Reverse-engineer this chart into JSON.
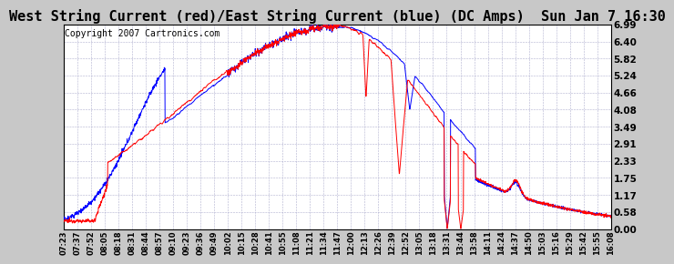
{
  "title": "West String Current (red)/East String Current (blue) (DC Amps)  Sun Jan 7 16:30",
  "copyright": "Copyright 2007 Cartronics.com",
  "bg_color": "#c8c8c8",
  "plot_bg_color": "#ffffff",
  "grid_color": "#b0b0d0",
  "yticks": [
    0.0,
    0.58,
    1.17,
    1.75,
    2.33,
    2.91,
    3.49,
    4.08,
    4.66,
    5.24,
    5.82,
    6.4,
    6.99
  ],
  "ymax": 6.99,
  "ymin": 0.0,
  "red_color": "#ff0000",
  "blue_color": "#0000ff",
  "title_fontsize": 11,
  "copyright_fontsize": 7
}
